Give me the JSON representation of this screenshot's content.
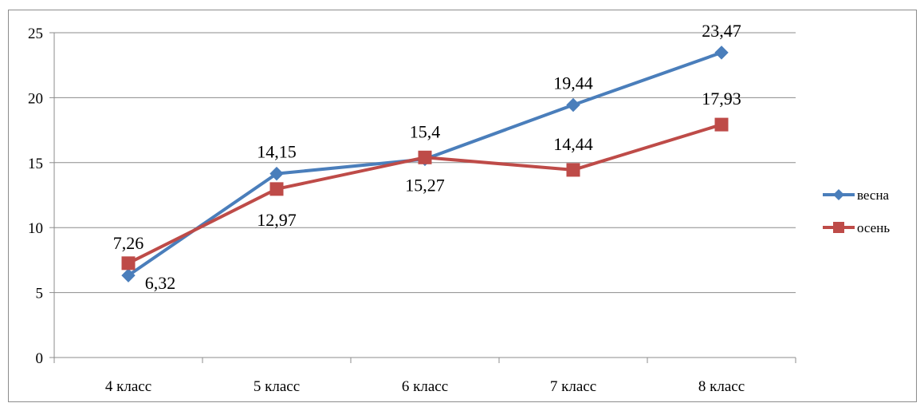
{
  "chart_data": {
    "type": "line",
    "categories": [
      "4 класс",
      "5 класс",
      "6 класс",
      "7 класс",
      "8 класс"
    ],
    "series": [
      {
        "name": "весна",
        "color": "#4a7ebb",
        "marker": "diamond",
        "values": [
          6.32,
          14.15,
          15.27,
          19.44,
          23.47
        ],
        "labels": [
          "6,32",
          "14,15",
          "15,27",
          "19,44",
          "23,47"
        ]
      },
      {
        "name": "осень",
        "color": "#be4b48",
        "marker": "square",
        "values": [
          7.26,
          12.97,
          15.4,
          14.44,
          17.93
        ],
        "labels": [
          "7,26",
          "12,97",
          "15,4",
          "14,44",
          "17,93"
        ]
      }
    ],
    "ylim": [
      0,
      25
    ],
    "yticks": [
      0,
      5,
      10,
      15,
      20,
      25
    ],
    "grid": true,
    "legend": "right"
  }
}
